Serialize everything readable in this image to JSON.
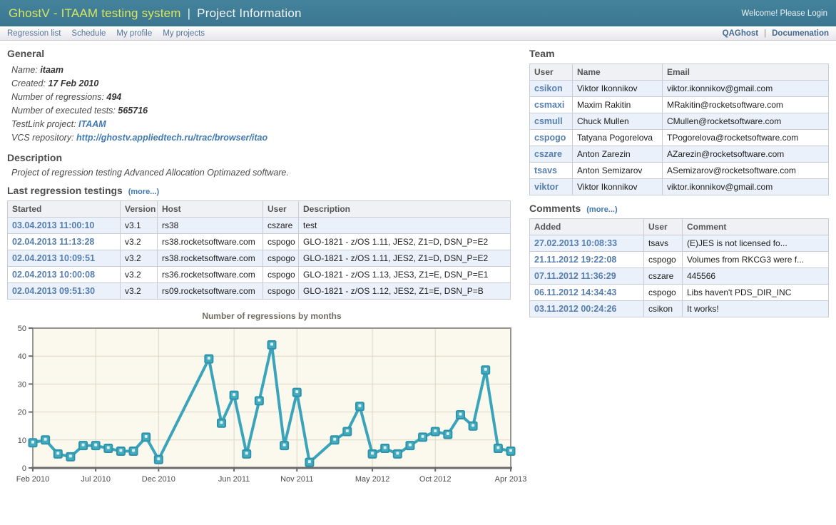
{
  "header": {
    "brand": "GhostV - ITAAM testing system",
    "separator": "|",
    "page_title": "Project Information",
    "welcome": "Welcome! Please Login"
  },
  "nav": {
    "left": [
      "Regression list",
      "Schedule",
      "My profile",
      "My projects"
    ],
    "right": [
      "QAGhost",
      "Documenation"
    ],
    "separator": "|"
  },
  "general": {
    "heading": "General",
    "fields": [
      {
        "label": "Name:",
        "value": "itaam",
        "link": false
      },
      {
        "label": "Created:",
        "value": "17 Feb 2010",
        "link": false
      },
      {
        "label": "Number of regressions:",
        "value": "494",
        "link": false
      },
      {
        "label": "Number of executed tests:",
        "value": "565716",
        "link": false
      },
      {
        "label": "TestLink project:",
        "value": "ITAAM",
        "link": true
      },
      {
        "label": "VCS repository:",
        "value": "http://ghostv.appliedtech.ru/trac/browser/itao",
        "link": true
      }
    ]
  },
  "description": {
    "heading": "Description",
    "text": "Project of regression testing Advanced Allocation Optimazed software."
  },
  "regressions": {
    "heading": "Last regression testings",
    "more_label": "(more...)",
    "columns": [
      "Started",
      "Version",
      "Host",
      "User",
      "Description"
    ],
    "rows": [
      [
        "03.04.2013 11:00:10",
        "v3.1",
        "rs38",
        "cszare",
        "test"
      ],
      [
        "02.04.2013 11:13:28",
        "v3.2",
        "rs38.rocketsoftware.com",
        "cspogo",
        "GLO-1821 - z/OS 1.11, JES2, Z1=D, DSN_P=E2"
      ],
      [
        "02.04.2013 10:09:51",
        "v3.2",
        "rs38.rocketsoftware.com",
        "cspogo",
        "GLO-1821 - z/OS 1.11, JES2, Z1=D, DSN_P=E2"
      ],
      [
        "02.04.2013 10:00:08",
        "v3.2",
        "rs36.rocketsoftware.com",
        "cspogo",
        "GLO-1821 - z/OS 1.13, JES3, Z1=E, DSN_P=E1"
      ],
      [
        "02.04.2013 09:51:30",
        "v3.2",
        "rs09.rocketsoftware.com",
        "cspogo",
        "GLO-1821 - z/OS 1.12, JES2, Z1=E, DSN_P=B"
      ]
    ]
  },
  "team": {
    "heading": "Team",
    "columns": [
      "User",
      "Name",
      "Email"
    ],
    "rows": [
      [
        "csikon",
        "Viktor Ikonnikov",
        "viktor.ikonnikov@gmail.com"
      ],
      [
        "csmaxi",
        "Maxim Rakitin",
        "MRakitin@rocketsoftware.com"
      ],
      [
        "csmull",
        "Chuck Mullen",
        "CMullen@rocketsoftware.com"
      ],
      [
        "cspogo",
        "Tatyana Pogorelova",
        "TPogorelova@rocketsoftware.com"
      ],
      [
        "cszare",
        "Anton Zarezin",
        "AZarezin@rocketsoftware.com"
      ],
      [
        "tsavs",
        "Anton Semizarov",
        "ASemizarov@rocketsoftware.com"
      ],
      [
        "viktor",
        "Viktor Ikonnikov",
        "viktor.ikonnikov@gmail.com"
      ]
    ]
  },
  "comments": {
    "heading": "Comments",
    "more_label": "(more...)",
    "columns": [
      "Added",
      "User",
      "Comment"
    ],
    "rows": [
      [
        "27.02.2013 10:08:33",
        "tsavs",
        "(E)JES is not licensed fo..."
      ],
      [
        "21.11.2012 19:22:08",
        "cspogo",
        "Volumes from RKCG3 were f..."
      ],
      [
        "07.11.2012 11:36:29",
        "cszare",
        "445566"
      ],
      [
        "06.11.2012 14:34:43",
        "cspogo",
        "Libs haven't PDS_DIR_INC"
      ],
      [
        "03.11.2012 00:24:26",
        "csikon",
        "It works!"
      ]
    ]
  },
  "chart_data": {
    "type": "line",
    "title": "Number of regressions by months",
    "xlabel": "",
    "ylabel": "",
    "ylim": [
      0,
      50
    ],
    "y_ticks": [
      0,
      10,
      20,
      30,
      40,
      50
    ],
    "grid": true,
    "legend": false,
    "x_months_total": 38,
    "x_tick_labels": [
      "Feb 2010",
      "Jul 2010",
      "Dec 2010",
      "Jun 2011",
      "Nov 2011",
      "May 2012",
      "Oct 2012",
      "Apr 2013"
    ],
    "x_tick_month_index": [
      0,
      5,
      10,
      16,
      21,
      27,
      32,
      38
    ],
    "points": [
      {
        "month": "Feb 2010",
        "m": 0,
        "value": 9
      },
      {
        "month": "Mar 2010",
        "m": 1,
        "value": 10
      },
      {
        "month": "Apr 2010",
        "m": 2,
        "value": 5
      },
      {
        "month": "May 2010",
        "m": 3,
        "value": 4
      },
      {
        "month": "Jun 2010",
        "m": 4,
        "value": 8
      },
      {
        "month": "Jul 2010",
        "m": 5,
        "value": 8
      },
      {
        "month": "Aug 2010",
        "m": 6,
        "value": 7
      },
      {
        "month": "Sep 2010",
        "m": 7,
        "value": 6
      },
      {
        "month": "Oct 2010",
        "m": 8,
        "value": 6
      },
      {
        "month": "Nov 2010",
        "m": 9,
        "value": 11
      },
      {
        "month": "Dec 2010",
        "m": 10,
        "value": 3
      },
      {
        "month": "Apr 2011",
        "m": 14,
        "value": 39
      },
      {
        "month": "May 2011",
        "m": 15,
        "value": 16
      },
      {
        "month": "Jun 2011",
        "m": 16,
        "value": 26
      },
      {
        "month": "Jul 2011",
        "m": 17,
        "value": 5
      },
      {
        "month": "Aug 2011",
        "m": 18,
        "value": 24
      },
      {
        "month": "Sep 2011",
        "m": 19,
        "value": 44
      },
      {
        "month": "Oct 2011",
        "m": 20,
        "value": 8
      },
      {
        "month": "Nov 2011",
        "m": 21,
        "value": 27
      },
      {
        "month": "Dec 2011",
        "m": 22,
        "value": 2
      },
      {
        "month": "Feb 2012",
        "m": 24,
        "value": 10
      },
      {
        "month": "Mar 2012",
        "m": 25,
        "value": 13
      },
      {
        "month": "Apr 2012",
        "m": 26,
        "value": 22
      },
      {
        "month": "May 2012",
        "m": 27,
        "value": 5
      },
      {
        "month": "Jun 2012",
        "m": 28,
        "value": 7
      },
      {
        "month": "Jul 2012",
        "m": 29,
        "value": 5
      },
      {
        "month": "Aug 2012",
        "m": 30,
        "value": 8
      },
      {
        "month": "Sep 2012",
        "m": 31,
        "value": 11
      },
      {
        "month": "Oct 2012",
        "m": 32,
        "value": 13
      },
      {
        "month": "Nov 2012",
        "m": 33,
        "value": 12
      },
      {
        "month": "Dec 2012",
        "m": 34,
        "value": 19
      },
      {
        "month": "Jan 2013",
        "m": 35,
        "value": 15
      },
      {
        "month": "Feb 2013",
        "m": 36,
        "value": 35
      },
      {
        "month": "Mar 2013",
        "m": 37,
        "value": 7
      },
      {
        "month": "Apr 2013",
        "m": 38,
        "value": 6
      }
    ]
  },
  "colors": {
    "header_bg": "#3f7d96",
    "brand_text": "#d9e65f",
    "link_blue": "#4179b5",
    "table_link": "#567eae",
    "row_stripe": "#eaf1fa",
    "chart_line": "#3aa5ba",
    "chart_plot_bg": "#fbf8ee",
    "chart_grid": "#dcd6c6"
  }
}
